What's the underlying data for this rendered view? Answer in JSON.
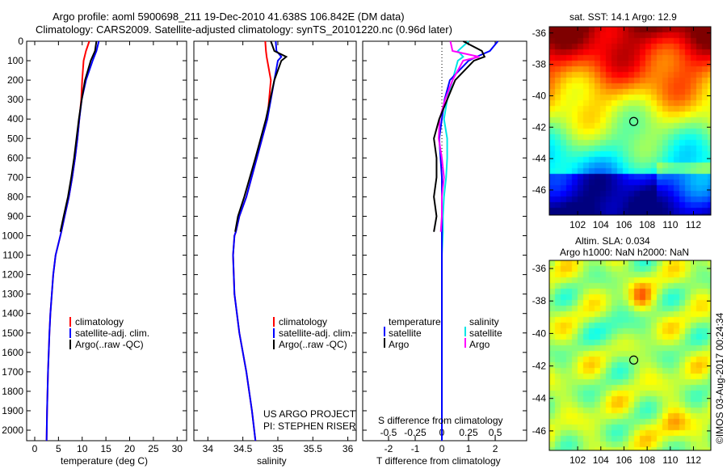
{
  "title": {
    "line1": "Argo profile: aoml 5900698_211 19-Dec-2010 41.638S 106.842E (DM data)",
    "line2": "Climatology: CARS2009. Satellite-adjusted climatology: synTS_20101220.nc (0.96d later)"
  },
  "colors": {
    "climatology": "#ff0000",
    "satellite": "#0000ff",
    "argo": "#000000",
    "sal_satellite": "#00e5e5",
    "sal_argo": "#ff00ff"
  },
  "chart_data": [
    {
      "type": "line",
      "name": "temperature",
      "xlabel": "temperature (deg C)",
      "ylabel": "depth",
      "xlim": [
        -1.7,
        32
      ],
      "ylim": [
        2054,
        0
      ],
      "xticks": [
        0,
        5,
        10,
        15,
        20,
        25,
        30
      ],
      "yticks": [
        0,
        100,
        200,
        300,
        400,
        500,
        600,
        700,
        800,
        900,
        1000,
        1100,
        1200,
        1300,
        1400,
        1500,
        1600,
        1700,
        1800,
        1900,
        2000
      ],
      "depth": [
        0,
        50,
        100,
        200,
        300,
        400,
        500,
        600,
        700,
        800,
        900,
        980,
        1000,
        1100,
        1200,
        1300,
        1400,
        1500,
        1700,
        1900,
        2054
      ],
      "series": [
        {
          "name": "climatology",
          "values": [
            11.5,
            10.8,
            10.3,
            10.0,
            9.8,
            9.4,
            9.0,
            8.5,
            7.9,
            7.2,
            6.3,
            5.6,
            5.4,
            4.4,
            3.9,
            3.6,
            3.3,
            3.1,
            2.8,
            2.6,
            2.5
          ]
        },
        {
          "name": "satellite-adj. clim.",
          "values": [
            13.5,
            13.0,
            12.2,
            10.8,
            9.9,
            9.4,
            9.0,
            8.5,
            7.9,
            7.2,
            6.3,
            5.6,
            5.4,
            4.4,
            3.9,
            3.6,
            3.3,
            3.1,
            2.8,
            2.6,
            2.5
          ]
        },
        {
          "name": "Argo(..raw -QC)",
          "values": [
            13.0,
            12.7,
            11.8,
            10.6,
            9.9,
            9.3,
            8.8,
            8.3,
            7.7,
            7.0,
            6.1,
            5.4,
            null,
            null,
            null,
            null,
            null,
            null,
            null,
            null,
            null
          ]
        }
      ],
      "legend": [
        "climatology",
        "satellite-adj. clim.",
        "Argo(..raw -QC)"
      ]
    },
    {
      "type": "line",
      "name": "salinity",
      "xlabel": "salinity",
      "xlim": [
        33.8,
        36.12
      ],
      "ylim": [
        2054,
        0
      ],
      "xticks": [
        34,
        34.5,
        35,
        35.5,
        36
      ],
      "xticklabels": [
        "34",
        "34.5",
        "35",
        "35.5",
        "36"
      ],
      "depth": [
        0,
        50,
        80,
        100,
        200,
        400,
        600,
        800,
        900,
        980,
        1000,
        1100,
        1300,
        1500,
        1700,
        1900,
        2054
      ],
      "series": [
        {
          "name": "climatology",
          "values": [
            34.82,
            34.83,
            34.84,
            34.85,
            34.9,
            34.85,
            34.7,
            34.55,
            34.45,
            34.4,
            34.38,
            34.36,
            34.38,
            34.45,
            34.55,
            34.63,
            34.68
          ]
        },
        {
          "name": "satellite-adj. clim.",
          "values": [
            34.97,
            34.98,
            35.05,
            35.0,
            34.95,
            34.85,
            34.7,
            34.55,
            34.45,
            34.4,
            34.38,
            34.36,
            34.38,
            34.45,
            34.55,
            34.63,
            34.68
          ]
        },
        {
          "name": "Argo(..raw -QC)",
          "values": [
            34.9,
            34.95,
            35.12,
            35.05,
            34.95,
            34.83,
            34.68,
            34.52,
            34.43,
            34.39,
            null,
            null,
            null,
            null,
            null,
            null,
            null
          ]
        }
      ],
      "legend": [
        "climatology",
        "satellite-adj. clim.",
        "Argo(..raw -QC)"
      ],
      "annotation": [
        "US ARGO PROJECT",
        "PI: STEPHEN RISER"
      ]
    },
    {
      "type": "line",
      "name": "differences",
      "xlabel": "T difference from climatology",
      "x2label": "S difference from climatology",
      "xlim": [
        -2.97,
        3.18
      ],
      "x2lim": [
        -0.742,
        0.795
      ],
      "ylim": [
        2054,
        0
      ],
      "xticks": [
        -2,
        -1,
        0,
        1,
        2
      ],
      "x2ticks": [
        -0.5,
        -0.25,
        0,
        0.25,
        0.5
      ],
      "depth": [
        0,
        50,
        80,
        100,
        200,
        300,
        400,
        500,
        600,
        700,
        800,
        900,
        980,
        1100,
        1400,
        1700,
        2054
      ],
      "series": [
        {
          "name": "temperature satellite",
          "values": [
            2.1,
            1.8,
            1.3,
            1.0,
            0.3,
            0.1,
            0,
            -0.1,
            -0.05,
            0,
            0,
            0,
            0,
            0,
            0,
            0,
            0
          ]
        },
        {
          "name": "temperature Argo",
          "values": [
            0.8,
            1.5,
            1.6,
            1.2,
            0.5,
            0.2,
            -0.1,
            -0.3,
            -0.2,
            -0.2,
            -0.3,
            -0.2,
            -0.3,
            null,
            null,
            null,
            null
          ]
        },
        {
          "name": "salinity satellite",
          "values": [
            0.25,
            0.15,
            0.2,
            0.15,
            0.1,
            0.05,
            0.02,
            0.05,
            0.05,
            0.04,
            0.02,
            0.01,
            0.01,
            0.0,
            0.0,
            0.0,
            0.0
          ]
        },
        {
          "name": "salinity Argo",
          "values": [
            0.08,
            0.1,
            0.35,
            0.2,
            0.1,
            0.03,
            -0.02,
            -0.03,
            0,
            0.02,
            0,
            0,
            -0.01,
            null,
            null,
            null,
            null
          ]
        }
      ],
      "legend": {
        "temperature_header": "temperature",
        "salinity_header": "salinity",
        "satellite": "satellite",
        "argo": "Argo"
      }
    },
    {
      "type": "heatmap",
      "name": "sst-map",
      "title": "sat. SST: 14.1 Argo: 12.9",
      "xlim": [
        99.55,
        113.5
      ],
      "ylim": [
        -47.6,
        -35.6
      ],
      "xticks": [
        102,
        104,
        106,
        108,
        110,
        112
      ],
      "yticks": [
        -36,
        -38,
        -40,
        -42,
        -44,
        -46
      ],
      "marker": {
        "lon": 106.842,
        "lat": -41.638
      }
    },
    {
      "type": "heatmap",
      "name": "sla-map",
      "title": "Altim. SLA: 0.034",
      "subtitle": "Argo h1000: NaN h2000: NaN",
      "xlim": [
        99.55,
        113.5
      ],
      "ylim": [
        -47.2,
        -35.5
      ],
      "xticks": [
        102,
        104,
        106,
        108,
        110,
        112
      ],
      "yticks": [
        -36,
        -38,
        -40,
        -42,
        -44,
        -46
      ],
      "marker": {
        "lon": 106.842,
        "lat": -41.638
      }
    }
  ],
  "credit": "©IMOS 03-Aug-2017 00:24:34"
}
